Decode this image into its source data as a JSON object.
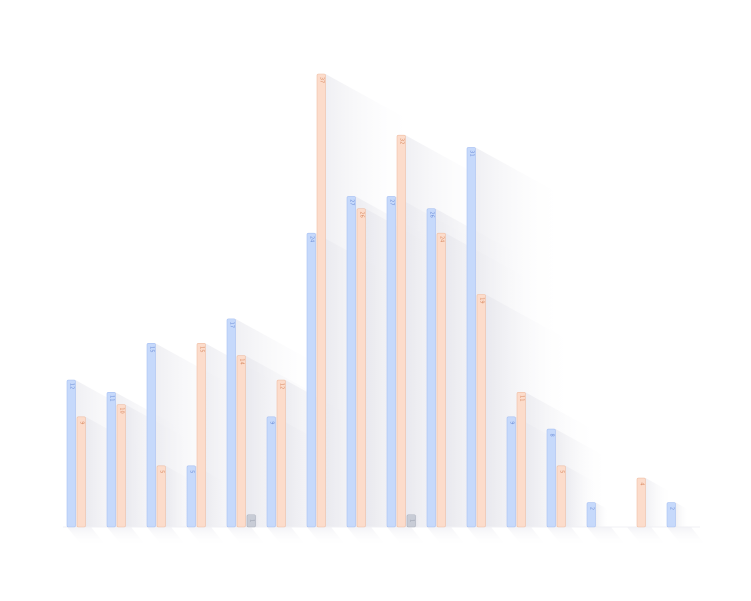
{
  "chart_data": {
    "type": "bar",
    "title": "",
    "xlabel": "",
    "ylabel": "",
    "ylim": [
      0,
      37
    ],
    "categories": [
      "",
      "",
      "",
      "",
      "",
      "",
      "",
      "",
      "",
      "",
      "",
      "",
      "",
      "",
      "",
      ""
    ],
    "series": [
      {
        "color": "#c6d9fb",
        "stroke": "#a9c1f2",
        "text_color": "#6f8fd8",
        "values": [
          12,
          11,
          15,
          5,
          17,
          9,
          24,
          27,
          27,
          26,
          31,
          9,
          8,
          2,
          0,
          2
        ],
        "labels": [
          "12",
          "11",
          "15",
          "5",
          "17",
          "9",
          "24",
          "27",
          "27",
          "26",
          "31",
          "9",
          "8",
          "2",
          "",
          "2"
        ]
      },
      {
        "color": "#fcdccb",
        "stroke": "#efbfa6",
        "text_color": "#d98a62",
        "values": [
          9,
          10,
          5,
          15,
          14,
          12,
          37,
          26,
          32,
          24,
          19,
          11,
          5,
          0,
          4,
          0
        ],
        "labels": [
          "9",
          "10",
          "5",
          "15",
          "14",
          "12",
          "37",
          "26",
          "32",
          "24",
          "19",
          "11",
          "5",
          "",
          "4",
          ""
        ]
      },
      {
        "color": "#c8ccd6",
        "stroke": "#aeb3bf",
        "text_color": "#9aa0ae",
        "values": [
          0,
          0,
          0,
          0,
          1,
          0,
          0,
          0,
          1,
          0,
          0,
          0,
          0,
          0,
          0,
          0
        ],
        "labels": [
          "",
          "",
          "",
          "",
          "1",
          "",
          "",
          "",
          "1",
          "",
          "",
          "",
          "",
          "",
          "",
          ""
        ]
      }
    ],
    "legend": "none",
    "grid": false
  }
}
